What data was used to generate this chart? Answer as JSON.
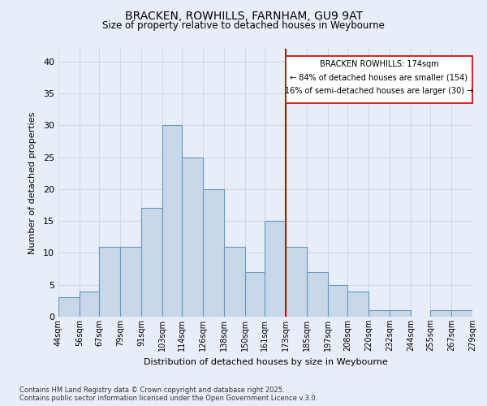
{
  "title1": "BRACKEN, ROWHILLS, FARNHAM, GU9 9AT",
  "title2": "Size of property relative to detached houses in Weybourne",
  "xlabel": "Distribution of detached houses by size in Weybourne",
  "ylabel": "Number of detached properties",
  "bin_edges": [
    44,
    56,
    67,
    79,
    91,
    103,
    114,
    126,
    138,
    150,
    161,
    173,
    185,
    197,
    208,
    220,
    232,
    244,
    255,
    267,
    279
  ],
  "counts": [
    3,
    4,
    11,
    11,
    17,
    30,
    25,
    20,
    11,
    7,
    15,
    11,
    7,
    5,
    4,
    1,
    1,
    0,
    1,
    1
  ],
  "bar_facecolor": "#c8d8ea",
  "bar_edgecolor": "#6699bb",
  "grid_color": "#d0d8e8",
  "bg_color": "#e8eef8",
  "vline_x": 173,
  "vline_color": "#cc0000",
  "annotation_title": "BRACKEN ROWHILLS: 174sqm",
  "annotation_line1": "← 84% of detached houses are smaller (154)",
  "annotation_line2": "16% of semi-detached houses are larger (30) →",
  "annotation_box_edgecolor": "#cc0000",
  "ylim": [
    0,
    42
  ],
  "yticks": [
    0,
    5,
    10,
    15,
    20,
    25,
    30,
    35,
    40
  ],
  "footer1": "Contains HM Land Registry data © Crown copyright and database right 2025.",
  "footer2": "Contains public sector information licensed under the Open Government Licence v.3.0."
}
